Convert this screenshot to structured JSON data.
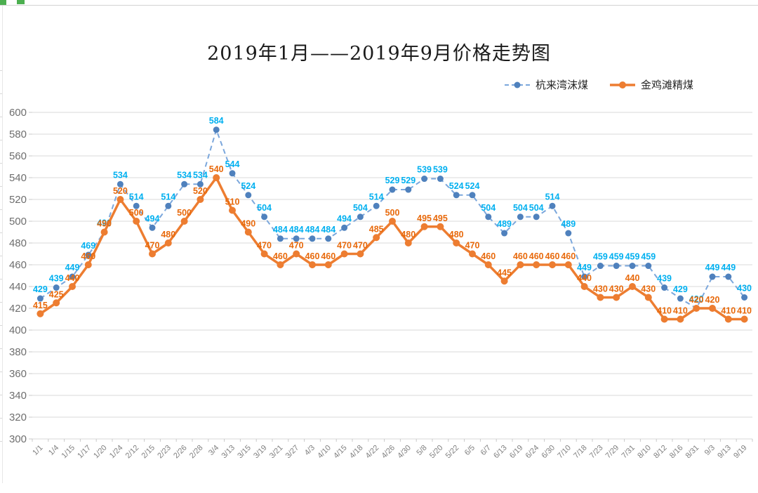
{
  "chart_data": {
    "type": "line",
    "title": "2019年1月——2019年9月价格走势图",
    "xlabel": "",
    "ylabel": "",
    "ylim": [
      300,
      600
    ],
    "ytick_step": 20,
    "grid": true,
    "legend_position": "top-right",
    "categories": [
      "1/1",
      "1/4",
      "1/15",
      "1/17",
      "1/20",
      "1/24",
      "2/12",
      "2/15",
      "2/23",
      "2/26",
      "2/28",
      "3/4",
      "3/13",
      "3/15",
      "3/19",
      "3/21",
      "3/27",
      "4/3",
      "4/10",
      "4/15",
      "4/18",
      "4/22",
      "4/26",
      "4/30",
      "5/8",
      "5/20",
      "5/22",
      "6/5",
      "6/7",
      "6/13",
      "6/19",
      "6/24",
      "6/30",
      "7/10",
      "7/18",
      "7/23",
      "7/29",
      "7/31",
      "8/10",
      "8/12",
      "8/16",
      "8/31",
      "9/3",
      "9/13",
      "9/19"
    ],
    "series": [
      {
        "name": "杭来湾沫煤",
        "style": "dashed",
        "line_color": "#7ba7dc",
        "marker_color": "#4f81bd",
        "label_color": "#00b0f0",
        "values": [
          429,
          439,
          449,
          469,
          490,
          534,
          514,
          494,
          514,
          534,
          534,
          584,
          544,
          524,
          504,
          484,
          484,
          484,
          484,
          494,
          504,
          514,
          529,
          529,
          539,
          539,
          524,
          524,
          504,
          489,
          504,
          504,
          514,
          489,
          449,
          459,
          459,
          459,
          459,
          439,
          429,
          420,
          449,
          449,
          430
        ]
      },
      {
        "name": "金鸡滩精煤",
        "style": "solid",
        "line_color": "#ed7d31",
        "marker_color": "#ed7d31",
        "label_color": "#e8690b",
        "values": [
          415,
          425,
          440,
          460,
          490,
          520,
          500,
          470,
          480,
          500,
          520,
          540,
          510,
          490,
          470,
          460,
          470,
          460,
          460,
          470,
          470,
          485,
          500,
          480,
          495,
          495,
          480,
          470,
          460,
          445,
          460,
          460,
          460,
          460,
          440,
          430,
          430,
          440,
          430,
          410,
          410,
          420,
          420,
          410,
          410
        ]
      }
    ],
    "axis_colors": {
      "gridline": "#d9d9d9",
      "axis_tick": "#c9c9c9",
      "y_label": "#6e6e6e",
      "x_label": "#808080"
    }
  },
  "decor": {
    "selection_green": "#4caf50"
  }
}
